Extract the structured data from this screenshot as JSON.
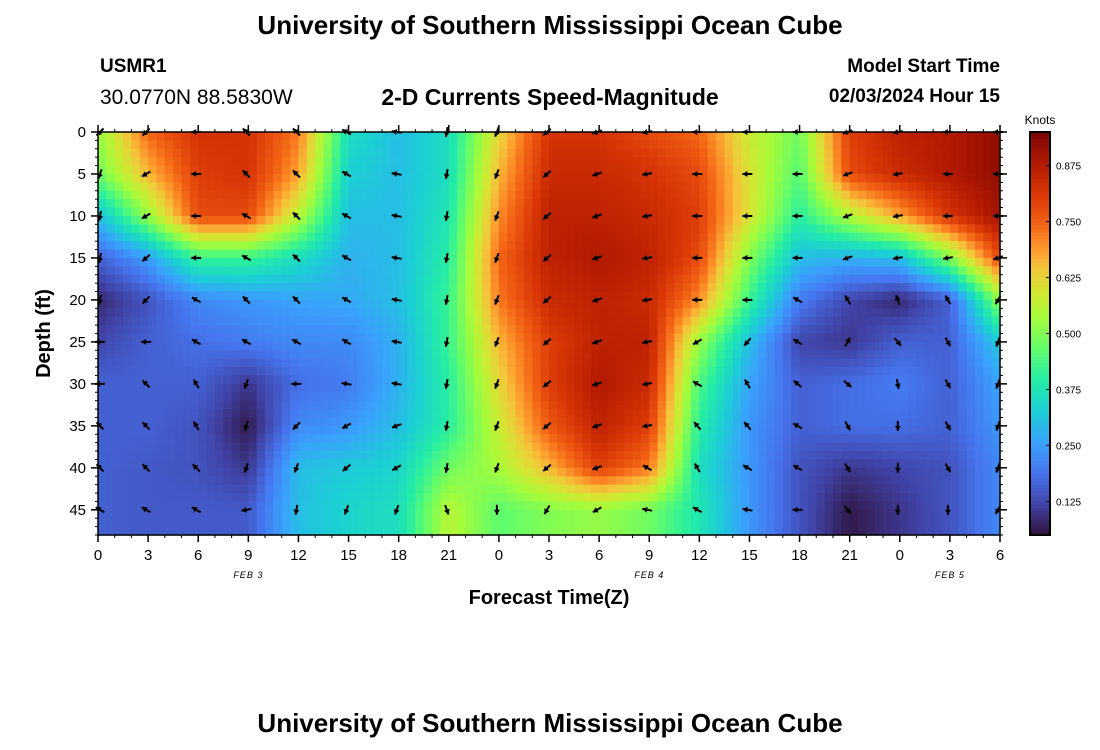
{
  "header": {
    "title": "University of Southern Mississippi Ocean Cube",
    "station": "USMR1",
    "coords": "30.0770N  88.5830W",
    "chart_title": "2-D Currents Speed-Magnitude",
    "model_label": "Model Start Time",
    "model_time": "02/03/2024 Hour 15"
  },
  "footer": {
    "title": "University of Southern Mississippi Ocean Cube"
  },
  "chart_data": {
    "type": "heatmap",
    "title": "2-D Currents Speed-Magnitude",
    "xlabel": "Forecast Time(Z)",
    "ylabel": "Depth (ft)",
    "colorbar_label": "Knots",
    "x_hours": [
      0,
      3,
      6,
      9,
      12,
      15,
      18,
      21,
      24,
      27,
      30,
      33,
      36,
      39,
      42,
      45,
      48,
      51,
      54
    ],
    "x_tick_labels": [
      "0",
      "3",
      "6",
      "9",
      "12",
      "15",
      "18",
      "21",
      "0",
      "3",
      "6",
      "9",
      "12",
      "15",
      "18",
      "21",
      "0",
      "3",
      "6"
    ],
    "date_labels": [
      {
        "hour": 9,
        "label": "FEB 3"
      },
      {
        "hour": 33,
        "label": "FEB 4"
      },
      {
        "hour": 51,
        "label": "FEB 5"
      }
    ],
    "depth_ft": [
      0,
      5,
      10,
      15,
      20,
      25,
      30,
      35,
      40,
      45
    ],
    "ylim": [
      0,
      48
    ],
    "colorbar": {
      "min": 0.05,
      "max": 0.95,
      "ticks": [
        0.125,
        0.25,
        0.375,
        0.5,
        0.625,
        0.75,
        0.875
      ],
      "tick_labels": [
        "0.125",
        "0.250",
        "0.375",
        "0.500",
        "0.625",
        "0.750",
        "0.875"
      ]
    },
    "speed_knots": [
      [
        0.52,
        0.74,
        0.82,
        0.82,
        0.72,
        0.36,
        0.3,
        0.36,
        0.62,
        0.82,
        0.82,
        0.78,
        0.74,
        0.58,
        0.48,
        0.8,
        0.86,
        0.88,
        0.92
      ],
      [
        0.48,
        0.66,
        0.8,
        0.82,
        0.68,
        0.33,
        0.3,
        0.36,
        0.66,
        0.84,
        0.84,
        0.82,
        0.78,
        0.6,
        0.45,
        0.78,
        0.84,
        0.88,
        0.92
      ],
      [
        0.3,
        0.52,
        0.78,
        0.78,
        0.56,
        0.3,
        0.3,
        0.38,
        0.7,
        0.86,
        0.86,
        0.84,
        0.8,
        0.6,
        0.4,
        0.55,
        0.68,
        0.82,
        0.9
      ],
      [
        0.16,
        0.25,
        0.42,
        0.42,
        0.36,
        0.28,
        0.3,
        0.4,
        0.74,
        0.86,
        0.88,
        0.86,
        0.78,
        0.5,
        0.3,
        0.28,
        0.3,
        0.5,
        0.78
      ],
      [
        0.08,
        0.14,
        0.22,
        0.24,
        0.26,
        0.27,
        0.3,
        0.42,
        0.72,
        0.84,
        0.86,
        0.84,
        0.7,
        0.42,
        0.2,
        0.12,
        0.08,
        0.16,
        0.52
      ],
      [
        0.12,
        0.16,
        0.18,
        0.2,
        0.22,
        0.22,
        0.28,
        0.42,
        0.66,
        0.8,
        0.86,
        0.86,
        0.52,
        0.3,
        0.12,
        0.1,
        0.16,
        0.16,
        0.32
      ],
      [
        0.16,
        0.16,
        0.16,
        0.1,
        0.18,
        0.2,
        0.28,
        0.4,
        0.62,
        0.8,
        0.88,
        0.84,
        0.44,
        0.26,
        0.16,
        0.18,
        0.2,
        0.16,
        0.26
      ],
      [
        0.16,
        0.16,
        0.14,
        0.06,
        0.22,
        0.24,
        0.3,
        0.4,
        0.58,
        0.76,
        0.86,
        0.8,
        0.4,
        0.24,
        0.16,
        0.18,
        0.18,
        0.16,
        0.24
      ],
      [
        0.16,
        0.15,
        0.14,
        0.1,
        0.3,
        0.32,
        0.34,
        0.48,
        0.54,
        0.66,
        0.8,
        0.72,
        0.36,
        0.24,
        0.14,
        0.1,
        0.12,
        0.14,
        0.22
      ],
      [
        0.16,
        0.15,
        0.15,
        0.15,
        0.3,
        0.34,
        0.36,
        0.56,
        0.46,
        0.5,
        0.52,
        0.48,
        0.38,
        0.24,
        0.14,
        0.06,
        0.1,
        0.14,
        0.22
      ]
    ],
    "direction_deg": [
      [
        225,
        225,
        270,
        315,
        315,
        300,
        280,
        190,
        200,
        230,
        250,
        260,
        270,
        270,
        270,
        250,
        260,
        270,
        270
      ],
      [
        200,
        240,
        270,
        315,
        315,
        300,
        280,
        190,
        200,
        230,
        250,
        260,
        270,
        270,
        270,
        250,
        260,
        270,
        270
      ],
      [
        190,
        240,
        270,
        300,
        315,
        300,
        280,
        190,
        200,
        230,
        250,
        260,
        270,
        270,
        270,
        250,
        260,
        270,
        270
      ],
      [
        190,
        230,
        270,
        300,
        315,
        300,
        280,
        190,
        200,
        230,
        250,
        260,
        270,
        270,
        270,
        250,
        260,
        260,
        250
      ],
      [
        190,
        225,
        300,
        315,
        315,
        300,
        280,
        190,
        200,
        230,
        250,
        260,
        270,
        270,
        300,
        330,
        340,
        330,
        210
      ],
      [
        270,
        270,
        300,
        300,
        300,
        300,
        280,
        190,
        200,
        230,
        250,
        260,
        240,
        220,
        300,
        30,
        140,
        150,
        200
      ],
      [
        270,
        315,
        330,
        200,
        270,
        280,
        280,
        190,
        200,
        230,
        250,
        260,
        300,
        330,
        310,
        130,
        170,
        150,
        200
      ],
      [
        315,
        315,
        330,
        200,
        225,
        240,
        250,
        190,
        200,
        230,
        250,
        260,
        320,
        320,
        300,
        150,
        180,
        150,
        200
      ],
      [
        315,
        315,
        315,
        200,
        200,
        230,
        240,
        190,
        200,
        230,
        250,
        300,
        330,
        300,
        300,
        150,
        180,
        150,
        200
      ],
      [
        300,
        300,
        300,
        260,
        190,
        200,
        200,
        160,
        180,
        210,
        240,
        280,
        300,
        280,
        270,
        140,
        180,
        180,
        210
      ]
    ]
  }
}
